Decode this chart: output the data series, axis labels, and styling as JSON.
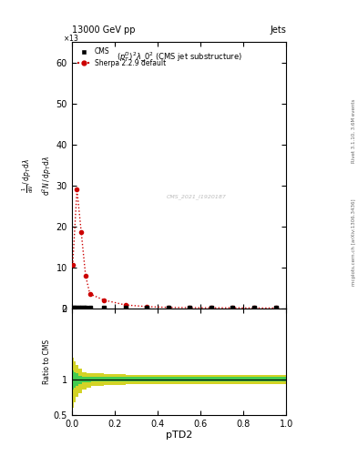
{
  "title_top": "13000 GeV pp",
  "title_right": "Jets",
  "subplot_title": "$(p_T^D)^2\\lambda\\_0^2$ (CMS jet substructure)",
  "watermark": "CMS_2021_I1920187",
  "right_label_top": "Rivet 3.1.10, 3.6M events",
  "right_label_bottom": "mcplots.cern.ch [arXiv:1306.3436]",
  "ylabel_main_lines": [
    "mathrm d^2N",
    "mathrm d p_T mathrm d lambda"
  ],
  "ylabel_ratio": "Ratio to CMS",
  "xlabel": "pTD2",
  "ylim_main": [
    0,
    65
  ],
  "ylim_ratio": [
    0.5,
    2.0
  ],
  "xlim": [
    0,
    1.0
  ],
  "yticks_main": [
    0,
    10,
    20,
    30,
    40,
    50,
    60
  ],
  "yticks_ratio": [
    0.5,
    1.0,
    2.0
  ],
  "yticklabels_ratio": [
    "0.5",
    "1",
    "2"
  ],
  "cms_x": [
    0.005,
    0.015,
    0.025,
    0.035,
    0.045,
    0.055,
    0.065,
    0.085,
    0.15,
    0.25,
    0.35,
    0.45,
    0.55,
    0.65,
    0.75,
    0.85,
    0.95
  ],
  "cms_y": [
    0.1,
    0.1,
    0.1,
    0.1,
    0.1,
    0.1,
    0.1,
    0.1,
    0.1,
    0.1,
    0.05,
    0.05,
    0.05,
    0.05,
    0.05,
    0.05,
    0.05
  ],
  "sherpa_x": [
    0.005,
    0.025,
    0.045,
    0.065,
    0.085,
    0.15,
    0.25,
    0.35,
    0.45,
    0.55,
    0.65,
    0.75,
    0.85,
    0.95
  ],
  "sherpa_y": [
    10.5,
    29.0,
    18.5,
    8.0,
    3.5,
    2.0,
    0.8,
    0.4,
    0.2,
    0.15,
    0.1,
    0.1,
    0.05,
    0.05
  ],
  "ratio_x": [
    0.0,
    0.01,
    0.02,
    0.03,
    0.05,
    0.07,
    0.09,
    0.15,
    0.25,
    0.45,
    0.65,
    0.85,
    1.0
  ],
  "ratio_green_u": [
    1.05,
    1.12,
    1.1,
    1.08,
    1.05,
    1.03,
    1.03,
    1.03,
    1.04,
    1.04,
    1.04,
    1.04,
    1.04
  ],
  "ratio_green_l": [
    0.95,
    0.85,
    0.88,
    0.9,
    0.93,
    0.96,
    0.96,
    0.97,
    0.97,
    0.97,
    0.97,
    0.97,
    0.97
  ],
  "ratio_yellow_u": [
    1.3,
    1.3,
    1.25,
    1.2,
    1.15,
    1.1,
    1.08,
    1.08,
    1.07,
    1.06,
    1.06,
    1.06,
    1.06
  ],
  "ratio_yellow_l": [
    0.7,
    0.6,
    0.68,
    0.75,
    0.8,
    0.85,
    0.88,
    0.9,
    0.92,
    0.93,
    0.93,
    0.93,
    0.93
  ],
  "color_cms": "#000000",
  "color_sherpa": "#cc0000",
  "color_green": "#33cc55",
  "color_yellow": "#cccc00",
  "background": "#ffffff"
}
